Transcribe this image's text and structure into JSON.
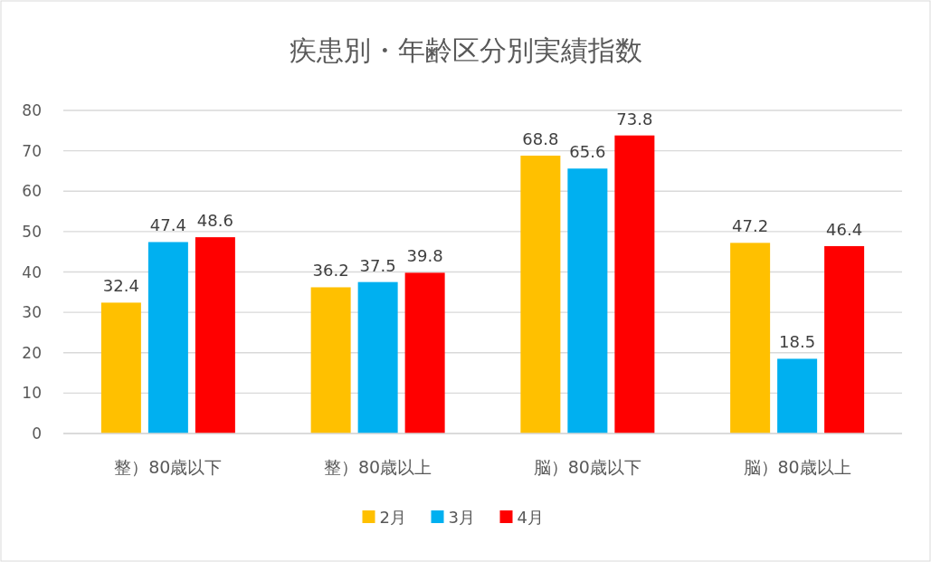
{
  "chart_data": {
    "type": "bar",
    "title": "疾患別・年齢区分別実績指数",
    "categories": [
      "整）80歳以下",
      "整）80歳以上",
      "脳）80歳以下",
      "脳）80歳以上"
    ],
    "series": [
      {
        "name": "2月",
        "color": "#ffc000",
        "values": [
          32.4,
          36.2,
          68.8,
          47.2
        ]
      },
      {
        "name": "3月",
        "color": "#00b0f0",
        "values": [
          47.4,
          37.5,
          65.6,
          18.5
        ]
      },
      {
        "name": "4月",
        "color": "#ff0000",
        "values": [
          48.6,
          39.8,
          73.8,
          46.4
        ]
      }
    ],
    "ylim": [
      0,
      80
    ],
    "yticks": [
      0,
      10,
      20,
      30,
      40,
      50,
      60,
      70,
      80
    ],
    "grid": "y",
    "legend": "bottom",
    "data_labels": true
  }
}
